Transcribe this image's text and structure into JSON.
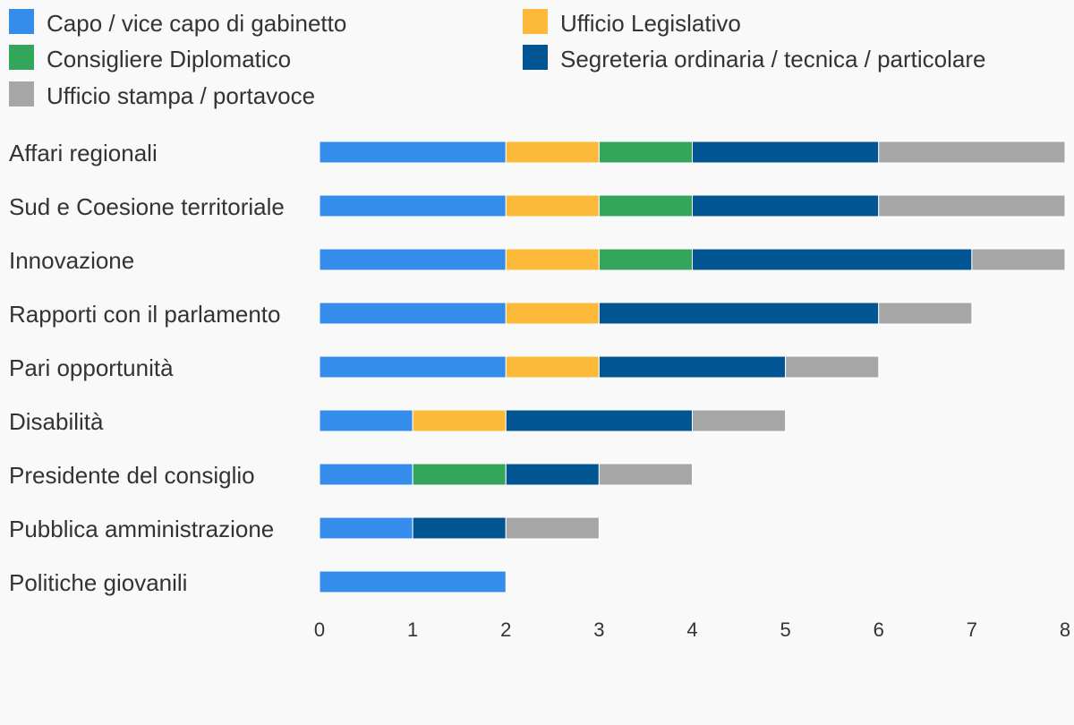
{
  "chart_data": {
    "type": "bar",
    "orientation": "horizontal",
    "stacked": true,
    "title": "",
    "xlabel": "",
    "ylabel": "",
    "xlim": [
      0,
      8
    ],
    "x_ticks": [
      0,
      1,
      2,
      3,
      4,
      5,
      6,
      7,
      8
    ],
    "grid": false,
    "legend_position": "top",
    "categories": [
      "Affari regionali",
      "Sud e Coesione territoriale",
      "Innovazione",
      "Rapporti con il parlamento",
      "Pari opportunità",
      "Disabilità",
      "Presidente del consiglio",
      "Pubblica amministrazione",
      "Politiche giovanili"
    ],
    "series": [
      {
        "name": "Capo / vice capo di gabinetto",
        "color": "#348deb",
        "values": [
          2,
          2,
          2,
          2,
          2,
          1,
          1,
          1,
          2
        ]
      },
      {
        "name": "Ufficio Legislativo",
        "color": "#fdb93a",
        "values": [
          1,
          1,
          1,
          1,
          1,
          1,
          0,
          0,
          0
        ]
      },
      {
        "name": "Consigliere Diplomatico",
        "color": "#33a65c",
        "values": [
          1,
          1,
          1,
          0,
          0,
          0,
          1,
          0,
          0
        ]
      },
      {
        "name": "Segreteria ordinaria / tecnica / particolare",
        "color": "#005592",
        "values": [
          2,
          2,
          3,
          3,
          2,
          2,
          1,
          1,
          0
        ]
      },
      {
        "name": "Ufficio stampa / portavoce",
        "color": "#a6a6a6",
        "values": [
          2,
          2,
          1,
          1,
          1,
          1,
          1,
          1,
          0
        ]
      }
    ]
  }
}
